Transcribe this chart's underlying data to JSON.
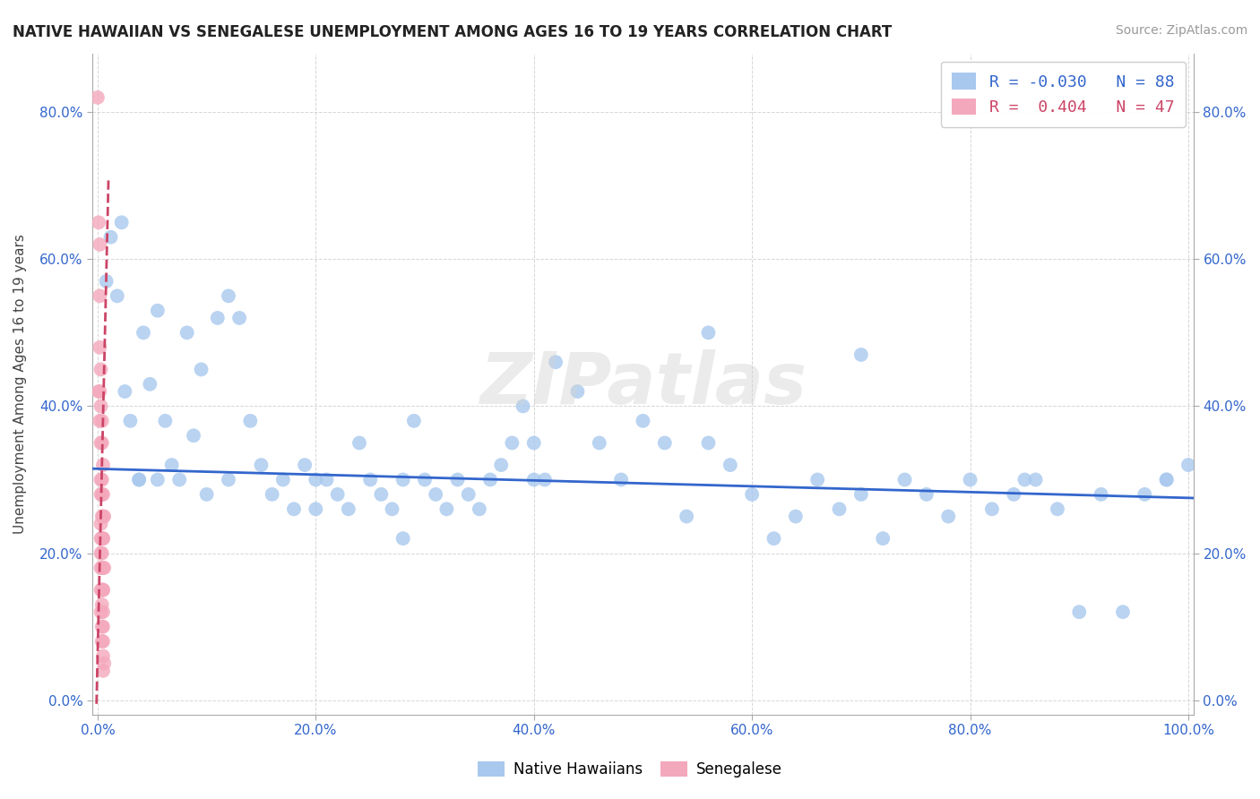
{
  "title": "NATIVE HAWAIIAN VS SENEGALESE UNEMPLOYMENT AMONG AGES 16 TO 19 YEARS CORRELATION CHART",
  "source": "Source: ZipAtlas.com",
  "ylabel": "Unemployment Among Ages 16 to 19 years",
  "xlim": [
    -0.005,
    1.005
  ],
  "ylim": [
    -0.02,
    0.88
  ],
  "xticks": [
    0.0,
    0.2,
    0.4,
    0.6,
    0.8,
    1.0
  ],
  "xtick_labels": [
    "0.0%",
    "20.0%",
    "40.0%",
    "60.0%",
    "80.0%",
    "100.0%"
  ],
  "yticks": [
    0.0,
    0.2,
    0.4,
    0.6,
    0.8
  ],
  "ytick_labels": [
    "0.0%",
    "20.0%",
    "40.0%",
    "60.0%",
    "80.0%"
  ],
  "right_ytick_labels": [
    "0.0%",
    "20.0%",
    "40.0%",
    "60.0%",
    "80.0%"
  ],
  "blue_R": -0.03,
  "blue_N": 88,
  "pink_R": 0.404,
  "pink_N": 47,
  "blue_color": "#A8C8EE",
  "pink_color": "#F4A8BC",
  "blue_line_color": "#3366CC",
  "pink_line_color": "#CC4466",
  "grid_color": "#CCCCCC",
  "background_color": "#FFFFFF",
  "legend_label_blue": "Native Hawaiians",
  "legend_label_pink": "Senegalese",
  "blue_scatter_x": [
    0.008,
    0.012,
    0.018,
    0.022,
    0.025,
    0.03,
    0.038,
    0.042,
    0.048,
    0.055,
    0.062,
    0.068,
    0.075,
    0.082,
    0.088,
    0.095,
    0.1,
    0.11,
    0.12,
    0.13,
    0.14,
    0.15,
    0.16,
    0.17,
    0.18,
    0.19,
    0.2,
    0.21,
    0.22,
    0.23,
    0.24,
    0.25,
    0.26,
    0.27,
    0.28,
    0.29,
    0.3,
    0.31,
    0.32,
    0.33,
    0.34,
    0.35,
    0.36,
    0.37,
    0.38,
    0.39,
    0.4,
    0.41,
    0.42,
    0.44,
    0.46,
    0.48,
    0.5,
    0.52,
    0.54,
    0.56,
    0.58,
    0.6,
    0.62,
    0.64,
    0.66,
    0.68,
    0.7,
    0.72,
    0.74,
    0.76,
    0.78,
    0.8,
    0.82,
    0.84,
    0.86,
    0.88,
    0.9,
    0.92,
    0.94,
    0.96,
    0.98,
    1.0,
    0.038,
    0.055,
    0.12,
    0.2,
    0.28,
    0.4,
    0.56,
    0.7,
    0.85,
    0.98
  ],
  "blue_scatter_y": [
    0.57,
    0.63,
    0.55,
    0.65,
    0.42,
    0.38,
    0.3,
    0.5,
    0.43,
    0.53,
    0.38,
    0.32,
    0.3,
    0.5,
    0.36,
    0.45,
    0.28,
    0.52,
    0.55,
    0.52,
    0.38,
    0.32,
    0.28,
    0.3,
    0.26,
    0.32,
    0.26,
    0.3,
    0.28,
    0.26,
    0.35,
    0.3,
    0.28,
    0.26,
    0.22,
    0.38,
    0.3,
    0.28,
    0.26,
    0.3,
    0.28,
    0.26,
    0.3,
    0.32,
    0.35,
    0.4,
    0.35,
    0.3,
    0.46,
    0.42,
    0.35,
    0.3,
    0.38,
    0.35,
    0.25,
    0.35,
    0.32,
    0.28,
    0.22,
    0.25,
    0.3,
    0.26,
    0.28,
    0.22,
    0.3,
    0.28,
    0.25,
    0.3,
    0.26,
    0.28,
    0.3,
    0.26,
    0.12,
    0.28,
    0.12,
    0.28,
    0.3,
    0.32,
    0.3,
    0.3,
    0.3,
    0.3,
    0.3,
    0.3,
    0.5,
    0.47,
    0.3,
    0.3
  ],
  "pink_scatter_x": [
    0.0,
    0.001,
    0.001,
    0.002,
    0.002,
    0.002,
    0.002,
    0.002,
    0.003,
    0.003,
    0.003,
    0.003,
    0.003,
    0.003,
    0.003,
    0.003,
    0.003,
    0.003,
    0.003,
    0.004,
    0.004,
    0.004,
    0.004,
    0.004,
    0.004,
    0.004,
    0.004,
    0.004,
    0.004,
    0.004,
    0.004,
    0.005,
    0.005,
    0.005,
    0.005,
    0.005,
    0.005,
    0.005,
    0.005,
    0.005,
    0.005,
    0.005,
    0.005,
    0.005,
    0.006,
    0.006,
    0.006
  ],
  "pink_scatter_y": [
    0.82,
    0.65,
    0.42,
    0.62,
    0.55,
    0.48,
    0.42,
    0.38,
    0.45,
    0.4,
    0.35,
    0.3,
    0.28,
    0.24,
    0.22,
    0.2,
    0.18,
    0.15,
    0.12,
    0.38,
    0.35,
    0.3,
    0.28,
    0.25,
    0.22,
    0.2,
    0.18,
    0.15,
    0.13,
    0.1,
    0.08,
    0.32,
    0.28,
    0.25,
    0.22,
    0.18,
    0.15,
    0.12,
    0.1,
    0.08,
    0.06,
    0.04,
    0.22,
    0.15,
    0.25,
    0.18,
    0.05
  ],
  "blue_trend_x": [
    -0.005,
    1.005
  ],
  "blue_trend_y": [
    0.315,
    0.275
  ],
  "pink_trend_x_start": 0.0,
  "pink_trend_x_end": 0.008,
  "pink_trend_y_start": 0.06,
  "pink_trend_y_end": 0.58
}
